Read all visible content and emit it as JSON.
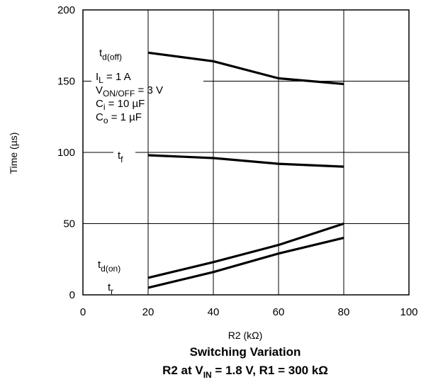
{
  "chart_data": {
    "type": "line",
    "title": "Switching Variation",
    "subtitle": {
      "prefix": "R2 at V",
      "sub": "IN",
      "suffix": " = 1.8 V, R1 = 300 kΩ"
    },
    "xlabel": "R2 (kΩ)",
    "ylabel": "Time (µs)",
    "xlim": [
      0,
      100
    ],
    "ylim": [
      0,
      200
    ],
    "xticks": [
      "0",
      "20",
      "40",
      "60",
      "80",
      "100"
    ],
    "yticks": [
      "0",
      "50",
      "100",
      "150",
      "200"
    ],
    "x": [
      20,
      40,
      60,
      80
    ],
    "grid": true,
    "series": [
      {
        "name": "td(off)",
        "label_main": "t",
        "label_sub": "d(off)",
        "values": [
          170,
          164,
          152,
          148
        ]
      },
      {
        "name": "tf",
        "label_main": "t",
        "label_sub": "f",
        "values": [
          98,
          96,
          92,
          90
        ]
      },
      {
        "name": "td(on)",
        "label_main": "t",
        "label_sub": "d(on)",
        "values": [
          12,
          23,
          35,
          50
        ]
      },
      {
        "name": "tr",
        "label_main": "t",
        "label_sub": "r",
        "values": [
          5,
          16,
          29,
          40
        ]
      }
    ],
    "annotations": [
      {
        "main": "I",
        "sub": "L",
        "rest": " = 1 A"
      },
      {
        "main": "V",
        "sub": "ON/OFF",
        "rest": " = 3 V"
      },
      {
        "main": "C",
        "sub": "i",
        "rest": " = 10 µF"
      },
      {
        "main": "C",
        "sub": "o",
        "rest": " = 1 µF"
      }
    ]
  }
}
